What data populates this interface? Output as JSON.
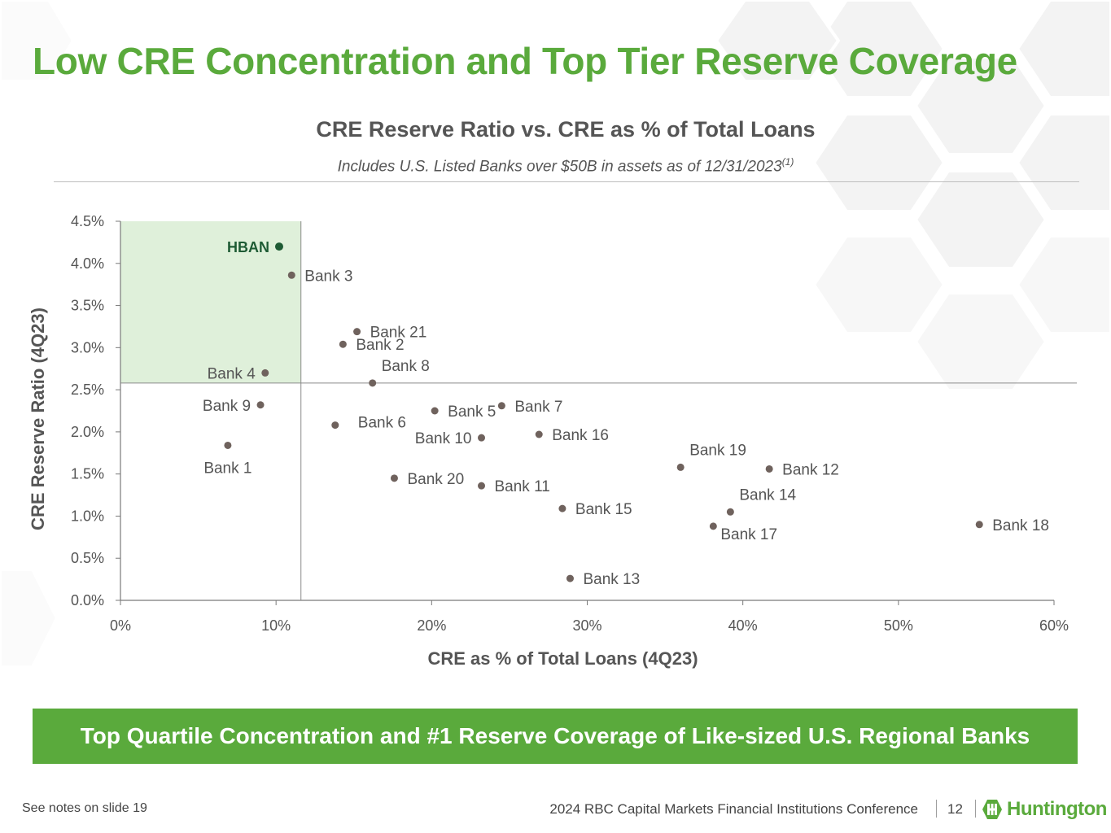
{
  "slide": {
    "title": "Low CRE Concentration and Top Tier Reserve Coverage",
    "banner": "Top Quartile Concentration and #1 Reserve Coverage of Like-sized U.S. Regional Banks",
    "footer_note": "See notes on slide 19",
    "footer_conference": "2024 RBC Capital Markets Financial Institutions Conference",
    "page_number": "12",
    "logo_text": "Huntington"
  },
  "colors": {
    "accent_green": "#5aaa3c",
    "highlight_point": "#1e5b34",
    "point": "#6f625d",
    "quadrant_fill": "#dff0da",
    "text_gray": "#555555"
  },
  "chart_data": {
    "type": "scatter",
    "title": "CRE Reserve Ratio vs. CRE as % of Total Loans",
    "subtitle": "Includes U.S. Listed Banks over $50B in assets as of 12/31/2023",
    "subtitle_sup": "(1)",
    "xlabel": "CRE as % of Total Loans (4Q23)",
    "ylabel": "CRE Reserve Ratio (4Q23)",
    "xlim": [
      0,
      60
    ],
    "ylim": [
      0,
      4.5
    ],
    "x_ticks": [
      0,
      10,
      20,
      30,
      40,
      50,
      60
    ],
    "x_tick_labels": [
      "0%",
      "10%",
      "20%",
      "30%",
      "40%",
      "50%",
      "60%"
    ],
    "y_ticks": [
      0,
      0.5,
      1.0,
      1.5,
      2.0,
      2.5,
      3.0,
      3.5,
      4.0,
      4.5
    ],
    "y_tick_labels": [
      "0.0%",
      "0.5%",
      "1.0%",
      "1.5%",
      "2.0%",
      "2.5%",
      "3.0%",
      "3.5%",
      "4.0%",
      "4.5%"
    ],
    "grid": false,
    "reference_lines": {
      "x": 11.6,
      "y": 2.58
    },
    "highlight_quadrant": "top-left",
    "points": [
      {
        "label": "HBAN",
        "x": 10.2,
        "y": 4.2,
        "highlight": true,
        "label_side": "left"
      },
      {
        "label": "Bank 3",
        "x": 11.0,
        "y": 3.86,
        "label_side": "right"
      },
      {
        "label": "Bank 21",
        "x": 15.2,
        "y": 3.19,
        "label_side": "right"
      },
      {
        "label": "Bank 2",
        "x": 14.3,
        "y": 3.04,
        "label_side": "right"
      },
      {
        "label": "Bank 4",
        "x": 9.3,
        "y": 2.7,
        "label_side": "left"
      },
      {
        "label": "Bank 8",
        "x": 16.2,
        "y": 2.58,
        "label_side": "above-right"
      },
      {
        "label": "Bank 9",
        "x": 9.0,
        "y": 2.32,
        "label_side": "left"
      },
      {
        "label": "Bank 5",
        "x": 20.2,
        "y": 2.25,
        "label_side": "right"
      },
      {
        "label": "Bank 7",
        "x": 24.5,
        "y": 2.31,
        "label_side": "right"
      },
      {
        "label": "Bank 6",
        "x": 13.8,
        "y": 2.08,
        "label_side": "right-far"
      },
      {
        "label": "Bank 10",
        "x": 23.2,
        "y": 1.93,
        "label_side": "left"
      },
      {
        "label": "Bank 16",
        "x": 26.9,
        "y": 1.97,
        "label_side": "right"
      },
      {
        "label": "Bank 1",
        "x": 6.9,
        "y": 1.84,
        "label_side": "below"
      },
      {
        "label": "Bank 19",
        "x": 36.0,
        "y": 1.58,
        "label_side": "above-right"
      },
      {
        "label": "Bank 12",
        "x": 41.7,
        "y": 1.56,
        "label_side": "right"
      },
      {
        "label": "Bank 20",
        "x": 17.6,
        "y": 1.45,
        "label_side": "right"
      },
      {
        "label": "Bank 11",
        "x": 23.2,
        "y": 1.36,
        "label_side": "right"
      },
      {
        "label": "Bank 15",
        "x": 28.4,
        "y": 1.09,
        "label_side": "right"
      },
      {
        "label": "Bank 14",
        "x": 39.2,
        "y": 1.05,
        "label_side": "above-right"
      },
      {
        "label": "Bank 17",
        "x": 38.1,
        "y": 0.88,
        "label_side": "below-right"
      },
      {
        "label": "Bank 18",
        "x": 55.2,
        "y": 0.9,
        "label_side": "right"
      },
      {
        "label": "Bank 13",
        "x": 28.9,
        "y": 0.26,
        "label_side": "right"
      }
    ]
  }
}
